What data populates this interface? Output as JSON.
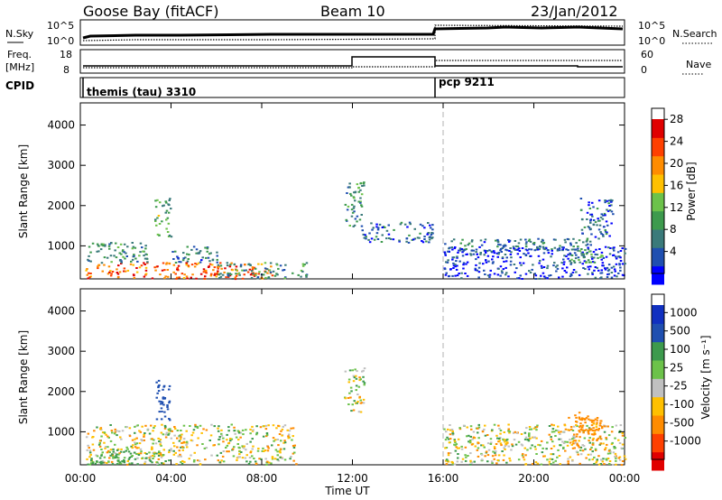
{
  "header": {
    "station": "Goose Bay (fitACF)",
    "beam": "Beam 10",
    "date": "23/Jan/2012"
  },
  "top_panels": {
    "nsky_label": "N.Sky",
    "nsky_ticks": [
      "10^5",
      "10^0"
    ],
    "nsearch_label": "N.Search",
    "nsearch_ticks": [
      "10^5",
      "10^0"
    ],
    "freq_label": "Freq.",
    "freq_unit": "[MHz]",
    "freq_ticks": [
      "18",
      "8"
    ],
    "nave_label": "Nave",
    "nave_ticks": [
      "60",
      "0"
    ],
    "cpid_label": "CPID",
    "cpid_segments": [
      {
        "name": "themis (tau) 3310",
        "start_hour": 0,
        "end_hour": 16
      },
      {
        "name": "pcp 9211",
        "start_hour": 16,
        "end_hour": 24
      }
    ]
  },
  "x_axis": {
    "title": "Time UT",
    "ticks": [
      "00:00",
      "04:00",
      "08:00",
      "12:00",
      "16:00",
      "20:00",
      "00:00"
    ],
    "tick_hours": [
      0,
      4,
      8,
      12,
      16,
      20,
      24
    ]
  },
  "colors": {
    "power": [
      "#0000ff",
      "#1f4fb0",
      "#3a7a7a",
      "#3d9a4d",
      "#6cc24a",
      "#ffc000",
      "#ff8c00",
      "#ff4000",
      "#e00000"
    ],
    "velocity": [
      "#e00000",
      "#ff4000",
      "#ff8c00",
      "#ffc000",
      "#c0c0c0",
      "#6cc24a",
      "#3d9a4d",
      "#1f4fb0",
      "#1030c0"
    ],
    "mode_change_line": "#b0b0b0"
  },
  "chart_data": [
    {
      "type": "heatmap",
      "title": "Power",
      "xlabel": "Time UT",
      "ylabel": "Slant Range [km]",
      "x_range_hours": [
        0,
        24
      ],
      "ylim": [
        180,
        4550
      ],
      "yticks": [
        1000,
        2000,
        3000,
        4000
      ],
      "colorbar": {
        "label": "Power [dB]",
        "range": [
          0,
          30
        ],
        "tick_values": [
          4,
          8,
          12,
          16,
          20,
          24,
          28
        ],
        "ticks": [
          "4",
          "8",
          "12",
          "16",
          "20",
          "24",
          "28"
        ]
      },
      "mode_change_hour": 16,
      "echo_regions": [
        {
          "hours": [
            0.2,
            8.5
          ],
          "range_km": [
            200,
            600
          ],
          "value_db": 24
        },
        {
          "hours": [
            0.2,
            3.0
          ],
          "range_km": [
            600,
            1100
          ],
          "value_db": 10
        },
        {
          "hours": [
            3.2,
            4.0
          ],
          "range_km": [
            1200,
            2200
          ],
          "value_db": 12
        },
        {
          "hours": [
            4.0,
            6.0
          ],
          "range_km": [
            600,
            1000
          ],
          "value_db": 8
        },
        {
          "hours": [
            6.0,
            10.0
          ],
          "range_km": [
            200,
            600
          ],
          "value_db": 10
        },
        {
          "hours": [
            11.6,
            12.5
          ],
          "range_km": [
            1500,
            2600
          ],
          "value_db": 10
        },
        {
          "hours": [
            12.3,
            15.5
          ],
          "range_km": [
            1100,
            1600
          ],
          "value_db": 6
        },
        {
          "hours": [
            16.0,
            22.5
          ],
          "range_km": [
            900,
            1200
          ],
          "value_db": 8
        },
        {
          "hours": [
            16.0,
            24.0
          ],
          "range_km": [
            200,
            1000
          ],
          "value_db": 4
        },
        {
          "hours": [
            21.5,
            23.0
          ],
          "range_km": [
            600,
            900
          ],
          "value_db": 12
        },
        {
          "hours": [
            22.0,
            23.5
          ],
          "range_km": [
            1200,
            2200
          ],
          "value_db": 6
        }
      ]
    },
    {
      "type": "heatmap",
      "title": "Velocity",
      "xlabel": "Time UT",
      "ylabel": "Slant Range [km]",
      "x_range_hours": [
        0,
        24
      ],
      "ylim": [
        180,
        4550
      ],
      "yticks": [
        1000,
        2000,
        3000,
        4000
      ],
      "colorbar": {
        "label": "Velocity [m s⁻¹]",
        "tick_values": [
          -1000,
          -500,
          -100,
          -25,
          25,
          100,
          500,
          1000
        ],
        "ticks": [
          "-1000",
          "-500",
          "-100",
          "-25",
          "25",
          "100",
          "500",
          "1000"
        ]
      },
      "mode_change_hour": 16,
      "echo_regions": [
        {
          "hours": [
            0.2,
            9.5
          ],
          "range_km": [
            200,
            1200
          ],
          "value_ms": 0
        },
        {
          "hours": [
            0.2,
            3.5
          ],
          "range_km": [
            200,
            600
          ],
          "value_ms": 150
        },
        {
          "hours": [
            3.3,
            3.9
          ],
          "range_km": [
            1300,
            2300
          ],
          "value_ms": 800
        },
        {
          "hours": [
            11.6,
            12.5
          ],
          "range_km": [
            1500,
            2600
          ],
          "value_ms": 0
        },
        {
          "hours": [
            16.0,
            24.0
          ],
          "range_km": [
            200,
            1200
          ],
          "value_ms": 0
        },
        {
          "hours": [
            21.5,
            23.0
          ],
          "range_km": [
            600,
            1500
          ],
          "value_ms": -300
        },
        {
          "hours": [
            22.0,
            23.0
          ],
          "range_km": [
            1200,
            1400
          ],
          "value_ms": -200
        }
      ]
    }
  ]
}
